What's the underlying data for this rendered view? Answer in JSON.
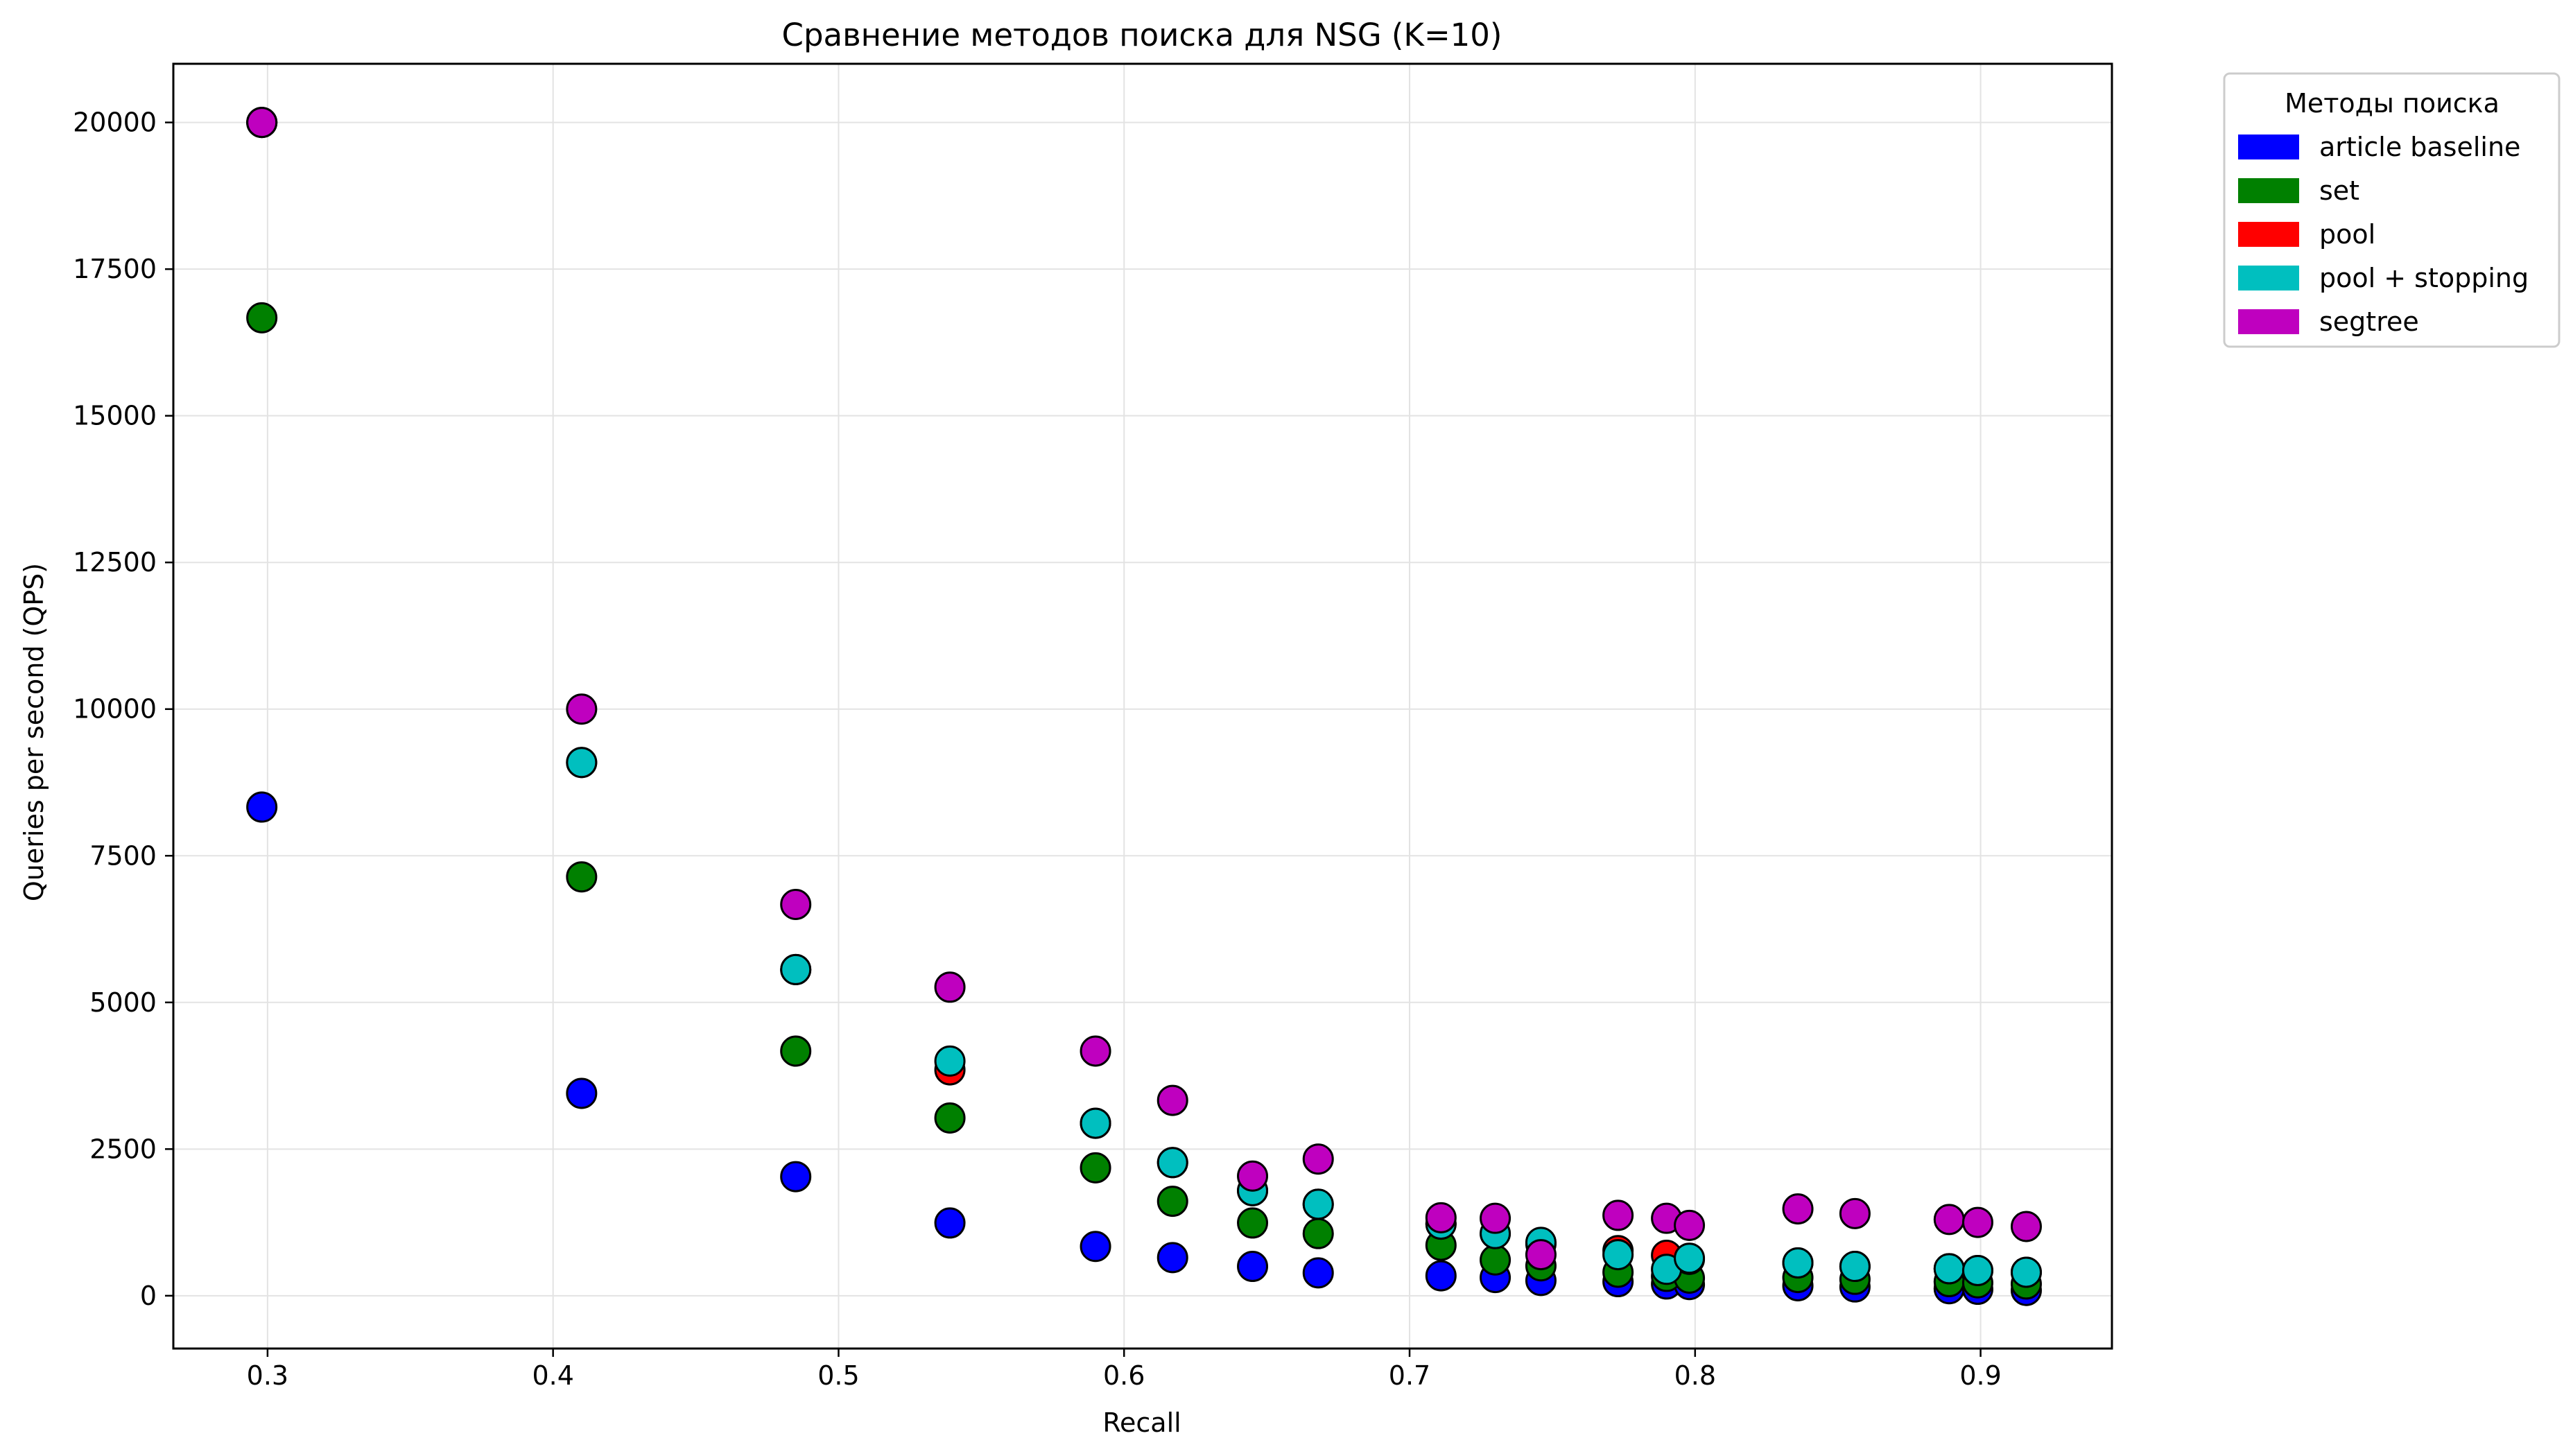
{
  "chart_data": {
    "type": "scatter",
    "title": "Сравнение методов поиска для NSG (K=10)",
    "xlabel": "Recall",
    "ylabel": "Queries per second (QPS)",
    "xlim": [
      0.267,
      0.946
    ],
    "ylim": [
      -900,
      21000
    ],
    "xticks": [
      0.3,
      0.4,
      0.5,
      0.6,
      0.7,
      0.8,
      0.9
    ],
    "xtick_labels": [
      "0.3",
      "0.4",
      "0.5",
      "0.6",
      "0.7",
      "0.8",
      "0.9"
    ],
    "yticks": [
      0,
      2500,
      5000,
      7500,
      10000,
      12500,
      15000,
      17500,
      20000
    ],
    "ytick_labels": [
      "0",
      "2500",
      "5000",
      "7500",
      "10000",
      "12500",
      "15000",
      "17500",
      "20000"
    ],
    "grid": true,
    "legend": {
      "title": "Методы поиска",
      "placement": "outside-top-right"
    },
    "series": [
      {
        "name": "article baseline",
        "color": "#0000ff",
        "points": [
          [
            0.298,
            8330
          ],
          [
            0.41,
            3450
          ],
          [
            0.485,
            2030
          ],
          [
            0.539,
            1240
          ],
          [
            0.59,
            840
          ],
          [
            0.617,
            650
          ],
          [
            0.645,
            500
          ],
          [
            0.668,
            390
          ],
          [
            0.711,
            340
          ],
          [
            0.73,
            310
          ],
          [
            0.746,
            260
          ],
          [
            0.773,
            240
          ],
          [
            0.79,
            200
          ],
          [
            0.798,
            190
          ],
          [
            0.836,
            170
          ],
          [
            0.856,
            150
          ],
          [
            0.889,
            120
          ],
          [
            0.899,
            110
          ],
          [
            0.916,
            90
          ]
        ]
      },
      {
        "name": "set",
        "color": "#008000",
        "points": [
          [
            0.298,
            16670
          ],
          [
            0.41,
            7140
          ],
          [
            0.485,
            4170
          ],
          [
            0.539,
            3030
          ],
          [
            0.59,
            2180
          ],
          [
            0.617,
            1610
          ],
          [
            0.645,
            1240
          ],
          [
            0.668,
            1060
          ],
          [
            0.711,
            860
          ],
          [
            0.73,
            610
          ],
          [
            0.746,
            510
          ],
          [
            0.773,
            400
          ],
          [
            0.79,
            330
          ],
          [
            0.798,
            300
          ],
          [
            0.836,
            310
          ],
          [
            0.856,
            280
          ],
          [
            0.889,
            240
          ],
          [
            0.899,
            220
          ],
          [
            0.916,
            200
          ]
        ]
      },
      {
        "name": "pool",
        "color": "#ff0000",
        "points": [
          [
            0.298,
            20000
          ],
          [
            0.41,
            9090
          ],
          [
            0.485,
            5560
          ],
          [
            0.539,
            3850
          ],
          [
            0.59,
            2940
          ],
          [
            0.617,
            2270
          ],
          [
            0.645,
            1790
          ],
          [
            0.668,
            1560
          ],
          [
            0.711,
            1220
          ],
          [
            0.73,
            1060
          ],
          [
            0.746,
            880
          ],
          [
            0.773,
            770
          ],
          [
            0.79,
            690
          ],
          [
            0.798,
            620
          ],
          [
            0.836,
            560
          ],
          [
            0.856,
            500
          ],
          [
            0.889,
            460
          ],
          [
            0.899,
            430
          ],
          [
            0.916,
            400
          ]
        ]
      },
      {
        "name": "pool + stopping",
        "color": "#00bfbf",
        "points": [
          [
            0.298,
            20000
          ],
          [
            0.41,
            9090
          ],
          [
            0.485,
            5560
          ],
          [
            0.539,
            4000
          ],
          [
            0.59,
            2940
          ],
          [
            0.617,
            2270
          ],
          [
            0.645,
            1790
          ],
          [
            0.668,
            1560
          ],
          [
            0.711,
            1220
          ],
          [
            0.73,
            1060
          ],
          [
            0.746,
            910
          ],
          [
            0.773,
            700
          ],
          [
            0.79,
            450
          ],
          [
            0.798,
            640
          ],
          [
            0.836,
            560
          ],
          [
            0.856,
            500
          ],
          [
            0.889,
            460
          ],
          [
            0.899,
            430
          ],
          [
            0.916,
            400
          ]
        ]
      },
      {
        "name": "segtree",
        "color": "#bf00bf",
        "points": [
          [
            0.298,
            20000
          ],
          [
            0.41,
            10000
          ],
          [
            0.485,
            6670
          ],
          [
            0.539,
            5260
          ],
          [
            0.59,
            4170
          ],
          [
            0.617,
            3330
          ],
          [
            0.645,
            2040
          ],
          [
            0.668,
            2330
          ],
          [
            0.711,
            1330
          ],
          [
            0.73,
            1320
          ],
          [
            0.746,
            700
          ],
          [
            0.773,
            1370
          ],
          [
            0.79,
            1320
          ],
          [
            0.798,
            1200
          ],
          [
            0.836,
            1480
          ],
          [
            0.856,
            1400
          ],
          [
            0.889,
            1300
          ],
          [
            0.899,
            1250
          ],
          [
            0.916,
            1180
          ]
        ]
      }
    ]
  }
}
